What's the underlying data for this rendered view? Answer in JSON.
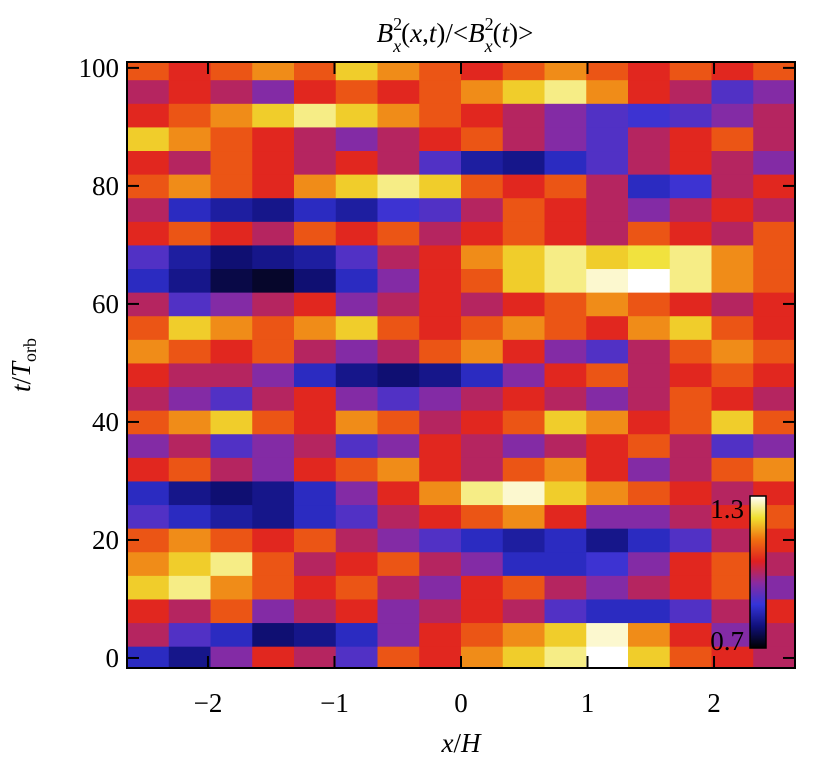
{
  "chart_data": {
    "type": "heatmap",
    "title": [
      "B",
      "2",
      "x",
      "(",
      "x",
      ",",
      "t",
      ")/<",
      "B",
      "2",
      "x",
      "(",
      "t",
      ")>"
    ],
    "x_label": [
      "x",
      "/",
      "H"
    ],
    "y_label": [
      "t",
      "/",
      "T",
      "orb"
    ],
    "xlim": [
      -2.64,
      2.64
    ],
    "ylim": [
      -1.7,
      101
    ],
    "xticks": [
      {
        "value": -2,
        "label": "−2"
      },
      {
        "value": -1,
        "label": "−1"
      },
      0,
      1,
      2
    ],
    "yticks": [
      0,
      20,
      40,
      60,
      80,
      100
    ],
    "zlim": [
      0.7,
      1.3
    ],
    "zticks": [
      0.7,
      1.3
    ],
    "colormap": [
      "#000000",
      "#10107a",
      "#3434d8",
      "#8a2aa0",
      "#e02020",
      "#f07010",
      "#f0e030",
      "#ffffff"
    ],
    "x": [
      -2.475,
      -2.145,
      -1.815,
      -1.485,
      -1.155,
      -0.825,
      -0.495,
      -0.165,
      0.165,
      0.495,
      0.825,
      1.155,
      1.485,
      1.815,
      2.145,
      2.475
    ],
    "y": [
      0,
      4,
      8,
      12,
      16,
      20,
      24,
      28,
      32,
      36,
      40,
      44,
      48,
      52,
      56,
      60,
      64,
      68,
      72,
      76,
      80,
      84,
      88,
      92,
      96,
      100
    ],
    "z": [
      [
        0.85,
        0.8,
        0.95,
        1.05,
        1.0,
        0.9,
        1.1,
        1.05,
        1.15,
        1.2,
        1.25,
        1.3,
        1.2,
        1.1,
        1.05,
        1.0
      ],
      [
        1.0,
        0.9,
        0.85,
        0.78,
        0.8,
        0.85,
        0.95,
        1.05,
        1.1,
        1.15,
        1.2,
        1.28,
        1.15,
        1.05,
        0.95,
        1.0
      ],
      [
        1.05,
        1.0,
        1.1,
        0.95,
        1.0,
        1.05,
        0.95,
        1.0,
        1.05,
        1.0,
        0.9,
        0.85,
        0.85,
        0.9,
        1.0,
        1.05
      ],
      [
        1.2,
        1.25,
        1.15,
        1.1,
        1.05,
        1.1,
        1.0,
        0.95,
        1.05,
        1.1,
        1.0,
        0.95,
        1.0,
        1.05,
        1.1,
        0.95
      ],
      [
        1.15,
        1.2,
        1.25,
        1.1,
        1.0,
        1.05,
        1.1,
        1.0,
        0.95,
        0.85,
        0.85,
        0.88,
        0.95,
        1.05,
        1.1,
        1.0
      ],
      [
        1.1,
        1.15,
        1.1,
        1.05,
        1.1,
        1.0,
        0.95,
        0.9,
        0.85,
        0.82,
        0.85,
        0.8,
        0.85,
        0.9,
        1.0,
        1.05
      ],
      [
        0.9,
        0.85,
        0.82,
        0.8,
        0.85,
        0.9,
        1.0,
        1.05,
        1.1,
        1.15,
        1.05,
        0.95,
        0.95,
        1.0,
        1.05,
        1.1
      ],
      [
        0.85,
        0.8,
        0.78,
        0.8,
        0.85,
        0.95,
        1.05,
        1.15,
        1.25,
        1.28,
        1.2,
        1.15,
        1.1,
        1.05,
        1.0,
        1.05
      ],
      [
        1.05,
        1.1,
        1.0,
        0.95,
        1.05,
        1.1,
        1.15,
        1.05,
        1.0,
        1.1,
        1.15,
        1.05,
        0.95,
        1.0,
        1.1,
        1.15
      ],
      [
        0.95,
        1.0,
        0.9,
        0.95,
        1.0,
        0.9,
        0.95,
        1.05,
        1.0,
        0.95,
        1.0,
        1.05,
        1.1,
        1.0,
        0.9,
        0.95
      ],
      [
        1.1,
        1.15,
        1.2,
        1.1,
        1.05,
        1.15,
        1.1,
        1.0,
        1.05,
        1.1,
        1.2,
        1.15,
        1.05,
        1.1,
        1.2,
        1.1
      ],
      [
        1.0,
        0.95,
        0.9,
        1.0,
        1.05,
        0.95,
        0.9,
        0.95,
        1.0,
        1.05,
        1.0,
        0.95,
        1.0,
        1.1,
        1.05,
        1.0
      ],
      [
        1.05,
        1.0,
        1.0,
        0.95,
        0.85,
        0.8,
        0.78,
        0.8,
        0.85,
        0.95,
        1.05,
        1.1,
        1.0,
        1.05,
        1.1,
        1.05
      ],
      [
        1.15,
        1.1,
        1.05,
        1.1,
        1.0,
        0.95,
        1.0,
        1.1,
        1.15,
        1.05,
        0.95,
        0.9,
        1.0,
        1.1,
        1.15,
        1.1
      ],
      [
        1.1,
        1.2,
        1.15,
        1.1,
        1.15,
        1.2,
        1.1,
        1.05,
        1.1,
        1.15,
        1.1,
        1.05,
        1.15,
        1.2,
        1.1,
        1.05
      ],
      [
        1.0,
        0.9,
        0.95,
        1.0,
        1.05,
        0.95,
        1.0,
        1.05,
        1.0,
        1.05,
        1.1,
        1.15,
        1.1,
        1.05,
        1.0,
        1.05
      ],
      [
        0.85,
        0.8,
        0.75,
        0.73,
        0.78,
        0.85,
        0.95,
        1.05,
        1.1,
        1.2,
        1.25,
        1.28,
        1.3,
        1.25,
        1.15,
        1.1
      ],
      [
        0.9,
        0.82,
        0.78,
        0.8,
        0.82,
        0.9,
        1.0,
        1.05,
        1.15,
        1.2,
        1.25,
        1.2,
        1.22,
        1.25,
        1.15,
        1.1
      ],
      [
        1.05,
        1.1,
        1.05,
        1.0,
        1.1,
        1.05,
        1.1,
        1.0,
        1.05,
        1.1,
        1.05,
        1.0,
        1.1,
        1.05,
        1.0,
        1.1
      ],
      [
        1.0,
        0.85,
        0.82,
        0.8,
        0.85,
        0.82,
        0.88,
        0.9,
        1.0,
        1.1,
        1.05,
        1.0,
        0.95,
        1.0,
        1.05,
        1.0
      ],
      [
        1.1,
        1.15,
        1.1,
        1.05,
        1.15,
        1.2,
        1.25,
        1.2,
        1.1,
        1.05,
        1.1,
        1.0,
        0.85,
        0.88,
        1.0,
        1.05
      ],
      [
        1.05,
        1.0,
        1.1,
        1.05,
        1.0,
        1.05,
        1.0,
        0.9,
        0.82,
        0.8,
        0.85,
        0.9,
        1.0,
        1.05,
        1.0,
        0.95
      ],
      [
        1.2,
        1.15,
        1.1,
        1.05,
        1.0,
        0.95,
        1.0,
        1.05,
        1.1,
        1.0,
        0.95,
        0.9,
        1.0,
        1.05,
        1.1,
        1.0
      ],
      [
        1.05,
        1.1,
        1.15,
        1.2,
        1.25,
        1.2,
        1.15,
        1.1,
        1.05,
        1.0,
        0.95,
        0.9,
        0.88,
        0.9,
        0.95,
        1.0
      ],
      [
        1.0,
        1.05,
        1.0,
        0.95,
        1.05,
        1.1,
        1.05,
        1.1,
        1.15,
        1.2,
        1.25,
        1.15,
        1.05,
        1.0,
        0.9,
        0.95
      ],
      [
        1.1,
        1.05,
        1.1,
        1.15,
        1.1,
        1.2,
        1.15,
        1.1,
        1.05,
        1.1,
        1.15,
        1.1,
        1.05,
        1.1,
        1.05,
        1.1
      ]
    ]
  }
}
